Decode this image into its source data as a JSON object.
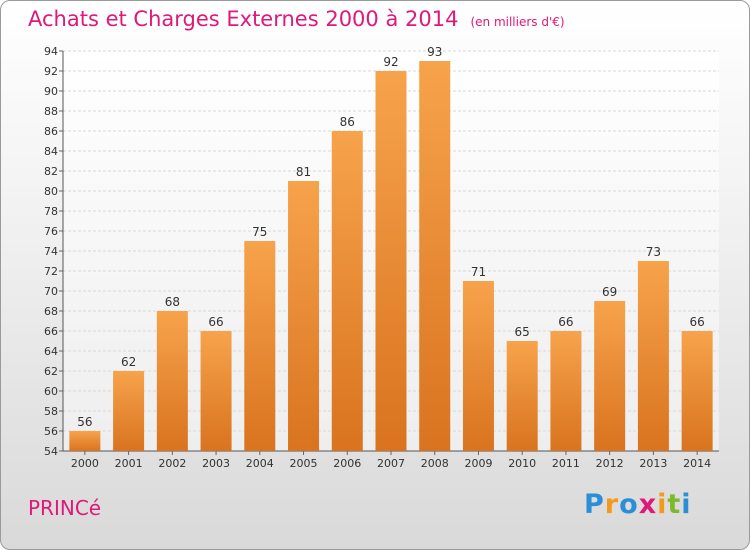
{
  "header": {
    "title": "Achats et Charges Externes 2000 à 2014",
    "unit": "(en milliers d'€)"
  },
  "footer": {
    "place": "PRINCé",
    "logo_letters": [
      "P",
      "r",
      "o",
      "x",
      "i",
      "t",
      "i"
    ],
    "logo_colors": [
      "#2a8fd6",
      "#f39a1c",
      "#2a8fd6",
      "#e0187a",
      "#f39a1c",
      "#7cba2c",
      "#2a8fd6"
    ]
  },
  "chart_data": {
    "type": "bar",
    "title": "Achats et Charges Externes 2000 à 2014",
    "xlabel": "",
    "ylabel": "",
    "categories": [
      "2000",
      "2001",
      "2002",
      "2003",
      "2004",
      "2005",
      "2006",
      "2007",
      "2008",
      "2009",
      "2010",
      "2011",
      "2012",
      "2013",
      "2014"
    ],
    "values": [
      56,
      62,
      68,
      66,
      75,
      81,
      86,
      92,
      93,
      71,
      65,
      66,
      69,
      73,
      66
    ],
    "ylim": [
      54,
      94
    ],
    "yticks": [
      54,
      56,
      58,
      60,
      62,
      64,
      66,
      68,
      70,
      72,
      74,
      76,
      78,
      80,
      82,
      84,
      86,
      88,
      90,
      92,
      94
    ],
    "grid": true,
    "legend": "none",
    "bar_color_top": "#f7a34c",
    "bar_color_bottom": "#d9731f"
  }
}
